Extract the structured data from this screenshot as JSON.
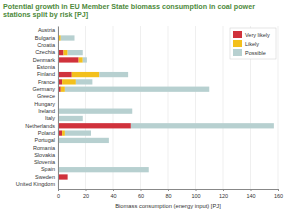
{
  "chart_data": {
    "type": "bar",
    "orientation": "horizontal",
    "stacked": true,
    "title": "Potential growth in EU Member State biomass consumption in coal power stations split by risk [PJ]",
    "x_label": "Biomass consumption (energy input) [PJ]",
    "categories": [
      "Austria",
      "Bulgaria",
      "Croatia",
      "Czechia",
      "Denmark",
      "Estonia",
      "Finland",
      "France",
      "Germany",
      "Greece",
      "Hungary",
      "Ireland",
      "Italy",
      "Netherlands",
      "Poland",
      "Portugal",
      "Romania",
      "Slovakia",
      "Slovenia",
      "Spain",
      "Sweden",
      "United Kingdom"
    ],
    "series": [
      {
        "name": "Very likely",
        "color": "#d0323c",
        "values": [
          0,
          0,
          0,
          4,
          15,
          0,
          10,
          3,
          2,
          0,
          0,
          0,
          0,
          53,
          3,
          0,
          0,
          0,
          0,
          0,
          7,
          0
        ]
      },
      {
        "name": "Likely",
        "color": "#f3c01c",
        "values": [
          0,
          2,
          0,
          3,
          3,
          0,
          20,
          10,
          3,
          0,
          0,
          0,
          0,
          0,
          2,
          0,
          0,
          0,
          0,
          0,
          0,
          0
        ]
      },
      {
        "name": "Possible",
        "color": "#b7d0d0",
        "values": [
          0,
          10,
          0,
          11,
          3,
          0,
          21,
          12,
          105,
          0,
          0,
          54,
          18,
          104,
          19,
          37,
          0,
          0,
          0,
          66,
          0,
          0
        ]
      }
    ],
    "xlim": [
      0,
      160
    ],
    "xticks": [
      0,
      20,
      40,
      60,
      80,
      100,
      120,
      140,
      160
    ],
    "grid": true,
    "legend": "upper right"
  }
}
